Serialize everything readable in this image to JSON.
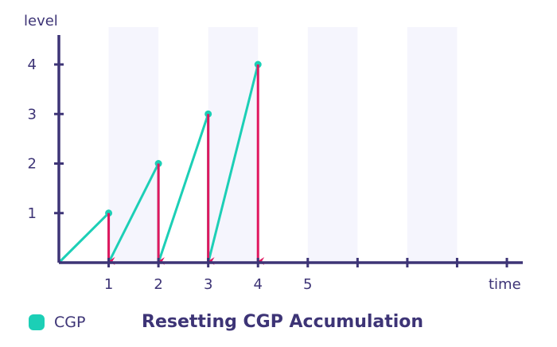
{
  "chart_data": {
    "type": "line",
    "title": "Resetting CGP Accumulation",
    "xlabel": "time",
    "ylabel": "level",
    "x_ticks": [
      1,
      2,
      3,
      4,
      5,
      6,
      7,
      8,
      9
    ],
    "x_tick_labels": [
      "1",
      "2",
      "3",
      "4",
      "5",
      "",
      "",
      "",
      ""
    ],
    "y_ticks": [
      1,
      2,
      3,
      4
    ],
    "y_tick_labels": [
      "1",
      "2",
      "3",
      "4"
    ],
    "xlim": [
      0,
      9
    ],
    "ylim": [
      0,
      4
    ],
    "grid": false,
    "legend_position": "bottom-left",
    "series": [
      {
        "name": "CGP",
        "color": "#1ccfb6",
        "points": [
          [
            0,
            0
          ],
          [
            1,
            1
          ],
          [
            1,
            0
          ],
          [
            2,
            2
          ],
          [
            2,
            0
          ],
          [
            3,
            3
          ],
          [
            3,
            0
          ],
          [
            4,
            4
          ]
        ],
        "markers": [
          [
            1,
            1
          ],
          [
            2,
            2
          ],
          [
            3,
            3
          ],
          [
            4,
            4
          ]
        ]
      }
    ],
    "reset_arrows": {
      "color": "#e0175f",
      "x": [
        1,
        2,
        3,
        4
      ],
      "from": [
        1,
        2,
        3,
        4
      ],
      "to": 0
    },
    "band_color": "#f5f5fd",
    "axis_color": "#3d3476"
  }
}
